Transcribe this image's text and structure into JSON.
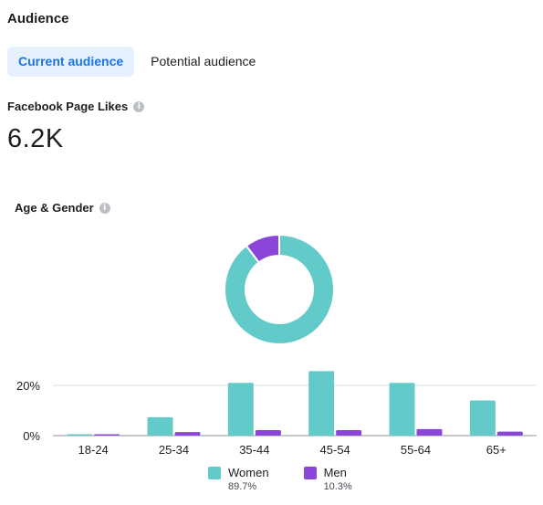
{
  "header": {
    "title": "Audience"
  },
  "tabs": [
    {
      "label": "Current audience",
      "active": true
    },
    {
      "label": "Potential audience",
      "active": false
    }
  ],
  "page_likes": {
    "label": "Facebook Page Likes",
    "value": "6.2K"
  },
  "age_gender": {
    "label": "Age & Gender"
  },
  "colors": {
    "women": "#62cbc9",
    "men": "#8b46d9",
    "accent": "#1b74e4"
  },
  "icons": {
    "info": "info-icon"
  },
  "chart_data": [
    {
      "type": "pie",
      "donut": true,
      "labels": [
        "Women",
        "Men"
      ],
      "values": [
        89.7,
        10.3
      ]
    },
    {
      "type": "bar",
      "categories": [
        "18-24",
        "25-34",
        "35-44",
        "45-54",
        "55-64",
        "65+"
      ],
      "series": [
        {
          "name": "Women",
          "values": [
            0.5,
            7.3,
            21,
            25.7,
            21,
            14
          ],
          "color": "#62cbc9"
        },
        {
          "name": "Men",
          "values": [
            0.3,
            1.4,
            2.2,
            2.2,
            2.6,
            1.6
          ],
          "color": "#8b46d9"
        }
      ],
      "yticks": [
        "20%",
        "0%"
      ],
      "ylim": [
        0,
        25.7
      ]
    }
  ],
  "legend": [
    {
      "label": "Women",
      "pct": "89.7%"
    },
    {
      "label": "Men",
      "pct": "10.3%"
    }
  ]
}
